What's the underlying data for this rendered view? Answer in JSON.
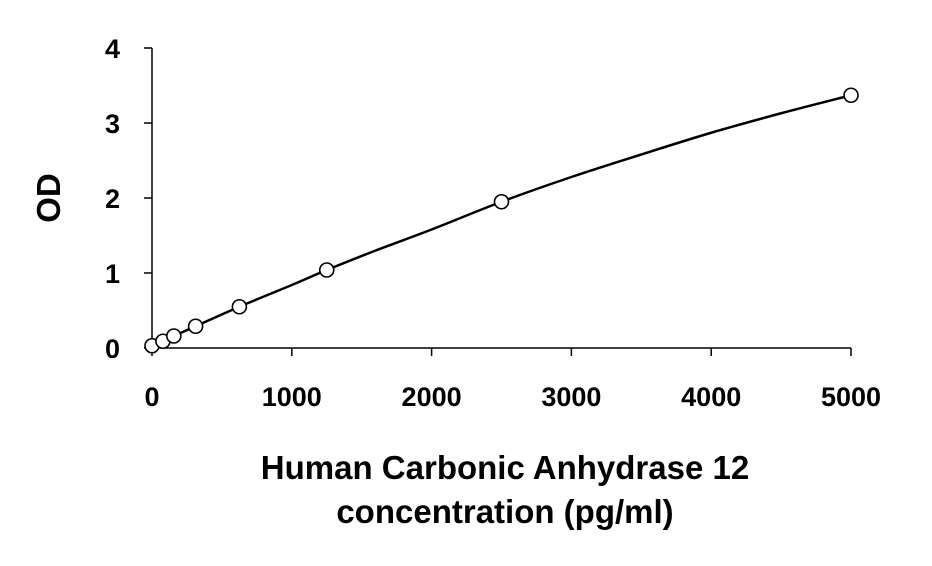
{
  "chart_data": {
    "type": "scatter",
    "title": "",
    "xlabel_lines": [
      "Human Carbonic Anhydrase 12",
      "concentration (pg/ml)"
    ],
    "ylabel": "OD",
    "xlim": [
      0,
      5000
    ],
    "ylim": [
      0,
      4
    ],
    "xticks": [
      0,
      1000,
      2000,
      3000,
      4000,
      5000
    ],
    "yticks": [
      0,
      1,
      2,
      3,
      4
    ],
    "grid": false,
    "legend": "none",
    "series": [
      {
        "x": [
          0,
          78,
          156,
          312,
          625,
          1250,
          2500,
          5000
        ],
        "y": [
          0.03,
          0.09,
          0.16,
          0.29,
          0.55,
          1.04,
          1.95,
          3.37
        ]
      }
    ],
    "curve": {
      "x": [
        0,
        78,
        156,
        312,
        625,
        1000,
        1250,
        1600,
        2000,
        2500,
        3000,
        3500,
        4000,
        4500,
        5000
      ],
      "y": [
        0.03,
        0.09,
        0.16,
        0.29,
        0.55,
        0.84,
        1.04,
        1.3,
        1.58,
        1.95,
        2.28,
        2.58,
        2.87,
        3.13,
        3.37
      ]
    },
    "marker": "open-circle",
    "line_color": "#000000"
  }
}
